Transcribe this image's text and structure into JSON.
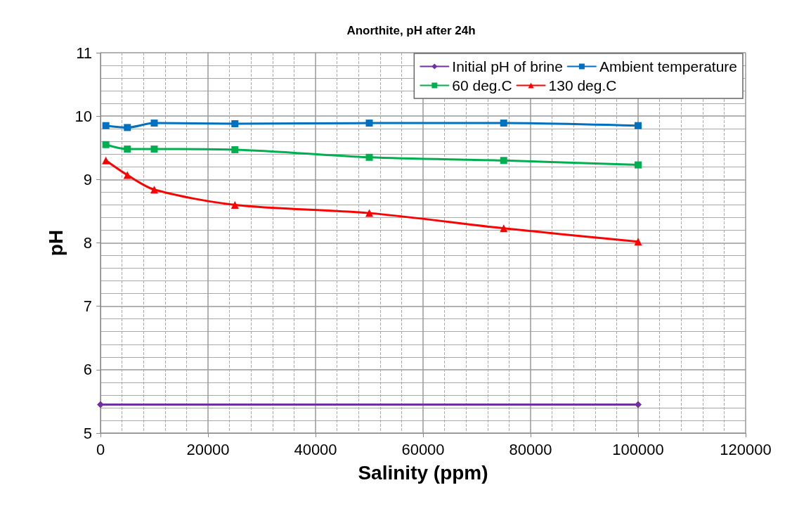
{
  "chart_data": {
    "type": "line",
    "title": "Anorthite, pH after 24h",
    "xlabel": "Salinity (ppm)",
    "ylabel": "pH",
    "xlim": [
      0,
      120000
    ],
    "xticks": [
      0,
      20000,
      40000,
      60000,
      80000,
      100000,
      120000
    ],
    "ylim": [
      5,
      11
    ],
    "yticks": [
      5,
      6,
      7,
      8,
      9,
      10,
      11
    ],
    "grid": true,
    "legend": "top right",
    "line_style": "solid",
    "series": [
      {
        "name": "Initial pH of brine",
        "color": "#7030a0",
        "marker": "diamond",
        "x": [
          0,
          100000
        ],
        "values": [
          5.45,
          5.45
        ]
      },
      {
        "name": "Ambient temperature",
        "color": "#0070c0",
        "marker": "square",
        "x": [
          1000,
          5000,
          10000,
          25000,
          50000,
          75000,
          100000
        ],
        "values": [
          9.85,
          9.82,
          9.89,
          9.88,
          9.89,
          9.89,
          9.85
        ]
      },
      {
        "name": "60 deg.C",
        "color": "#00b050",
        "marker": "square",
        "x": [
          1000,
          5000,
          10000,
          25000,
          50000,
          75000,
          100000
        ],
        "values": [
          9.55,
          9.48,
          9.48,
          9.47,
          9.35,
          9.3,
          9.23
        ]
      },
      {
        "name": "130 deg.C",
        "color": "#ff0000",
        "marker": "triangle",
        "x": [
          1000,
          5000,
          10000,
          25000,
          50000,
          75000,
          100000
        ],
        "values": [
          9.3,
          9.07,
          8.84,
          8.6,
          8.47,
          8.23,
          8.02
        ]
      }
    ]
  }
}
